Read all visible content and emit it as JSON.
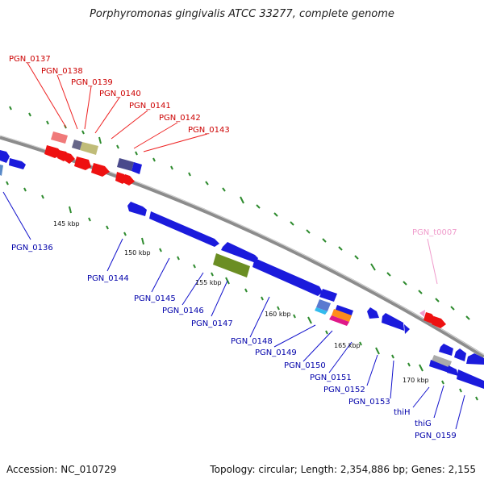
{
  "title": "Porphyromonas gingivalis ATCC 33277, complete genome",
  "footer": {
    "accession": "Accession: NC_010729",
    "topology": "Topology: circular; Length: 2,354,886 bp; Genes: 2,155"
  },
  "colors": {
    "backbone": "#8c8c8c",
    "forward_label": "#cc0000",
    "reverse_label": "#0000aa",
    "trna_label": "#f09ccc",
    "ticks": "#2e8b2e"
  },
  "scale_labels": [
    {
      "text": "145 kbp"
    },
    {
      "text": "150 kbp"
    },
    {
      "text": "155 kbp"
    },
    {
      "text": "160 kbp"
    },
    {
      "text": "165 kbp"
    },
    {
      "text": "170 kbp"
    }
  ],
  "forward_genes": [
    "PGN_0137",
    "PGN_0138",
    "PGN_0139",
    "PGN_0140",
    "PGN_0141",
    "PGN_0142",
    "PGN_0143"
  ],
  "reverse_genes": [
    "PGN_0136",
    "PGN_0144",
    "PGN_0145",
    "PGN_0146",
    "PGN_0147",
    "PGN_0148",
    "PGN_0149",
    "PGN_0150",
    "PGN_0151",
    "PGN_0152",
    "PGN_0153",
    "thiH",
    "thiG",
    "PGN_0159"
  ],
  "trna_genes": [
    "PGN_t0007"
  ]
}
